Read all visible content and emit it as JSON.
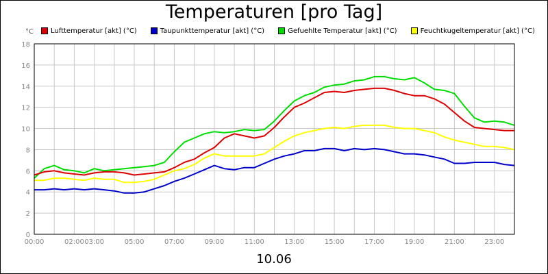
{
  "date_label": "10.06",
  "chart_data": {
    "type": "line",
    "title": "Temperaturen [pro Tag]",
    "y_unit": "°C",
    "ylim": [
      0,
      18
    ],
    "y_ticks": [
      0,
      2,
      4,
      6,
      8,
      10,
      12,
      14,
      16,
      18
    ],
    "xlim": [
      0,
      24
    ],
    "x_ticks": [
      {
        "h": 0,
        "label": "00:00"
      },
      {
        "h": 2,
        "label": "02:00"
      },
      {
        "h": 3,
        "label": "03:00"
      },
      {
        "h": 5,
        "label": "05:00"
      },
      {
        "h": 7,
        "label": "07:00"
      },
      {
        "h": 9,
        "label": "09:00"
      },
      {
        "h": 11,
        "label": "11:00"
      },
      {
        "h": 13,
        "label": "13:00"
      },
      {
        "h": 15,
        "label": "15:00"
      },
      {
        "h": 17,
        "label": "17:00"
      },
      {
        "h": 19,
        "label": "19:00"
      },
      {
        "h": 21,
        "label": "21:00"
      },
      {
        "h": 23,
        "label": "23:00"
      }
    ],
    "grid": true,
    "legend_position": "top",
    "x_hours": [
      0,
      0.5,
      1,
      1.5,
      2,
      2.5,
      3,
      3.5,
      4,
      4.5,
      5,
      5.5,
      6,
      6.5,
      7,
      7.5,
      8,
      8.5,
      9,
      9.5,
      10,
      10.5,
      11,
      11.5,
      12,
      12.5,
      13,
      13.5,
      14,
      14.5,
      15,
      15.5,
      16,
      16.5,
      17,
      17.5,
      18,
      18.5,
      19,
      19.5,
      20,
      20.5,
      21,
      21.5,
      22,
      22.5,
      23,
      23.5,
      24
    ],
    "series": [
      {
        "name": "Lufttemperatur [akt] (°C)",
        "color": "#dd0000",
        "values": [
          5.6,
          5.9,
          6.0,
          5.8,
          5.7,
          5.6,
          5.8,
          5.9,
          5.9,
          5.8,
          5.6,
          5.7,
          5.8,
          5.9,
          6.3,
          6.8,
          7.1,
          7.7,
          8.2,
          9.1,
          9.5,
          9.3,
          9.1,
          9.3,
          10.1,
          11.1,
          12.0,
          12.4,
          12.9,
          13.4,
          13.5,
          13.4,
          13.6,
          13.7,
          13.8,
          13.8,
          13.6,
          13.3,
          13.1,
          13.1,
          12.8,
          12.3,
          11.5,
          10.7,
          10.1,
          10.0,
          9.9,
          9.8,
          9.8
        ]
      },
      {
        "name": "Taupunkttemperatur [akt] (°C)",
        "color": "#0000cc",
        "values": [
          4.2,
          4.2,
          4.3,
          4.2,
          4.3,
          4.2,
          4.3,
          4.2,
          4.1,
          3.9,
          3.9,
          4.0,
          4.3,
          4.6,
          5.0,
          5.3,
          5.7,
          6.1,
          6.5,
          6.2,
          6.1,
          6.3,
          6.3,
          6.7,
          7.1,
          7.4,
          7.6,
          7.9,
          7.9,
          8.1,
          8.1,
          7.9,
          8.1,
          8.0,
          8.1,
          8.0,
          7.8,
          7.6,
          7.6,
          7.5,
          7.3,
          7.1,
          6.7,
          6.7,
          6.8,
          6.8,
          6.8,
          6.6,
          6.5
        ]
      },
      {
        "name": "Gefuehlte Temperatur [akt] (°C)",
        "color": "#00dd00",
        "values": [
          5.3,
          6.2,
          6.5,
          6.1,
          6.0,
          5.8,
          6.2,
          6.0,
          6.1,
          6.2,
          6.3,
          6.4,
          6.5,
          6.8,
          7.8,
          8.7,
          9.1,
          9.5,
          9.7,
          9.6,
          9.7,
          9.9,
          9.8,
          9.9,
          10.7,
          11.7,
          12.6,
          13.1,
          13.4,
          13.9,
          14.1,
          14.2,
          14.5,
          14.6,
          14.9,
          14.9,
          14.7,
          14.6,
          14.8,
          14.3,
          13.7,
          13.6,
          13.3,
          12.1,
          11.0,
          10.6,
          10.7,
          10.6,
          10.3
        ]
      },
      {
        "name": "Feuchtkugeltemperatur [akt] (°C)",
        "color": "#ffff00",
        "values": [
          5.1,
          5.1,
          5.3,
          5.3,
          5.2,
          5.1,
          5.3,
          5.2,
          5.2,
          4.9,
          4.9,
          5.0,
          5.2,
          5.6,
          6.0,
          6.2,
          6.6,
          7.2,
          7.6,
          7.4,
          7.4,
          7.4,
          7.4,
          7.6,
          8.2,
          8.8,
          9.3,
          9.6,
          9.8,
          10.0,
          10.1,
          10.0,
          10.2,
          10.3,
          10.3,
          10.3,
          10.1,
          10.0,
          10.0,
          9.8,
          9.6,
          9.2,
          8.9,
          8.7,
          8.5,
          8.3,
          8.3,
          8.2,
          8.0
        ]
      }
    ]
  }
}
